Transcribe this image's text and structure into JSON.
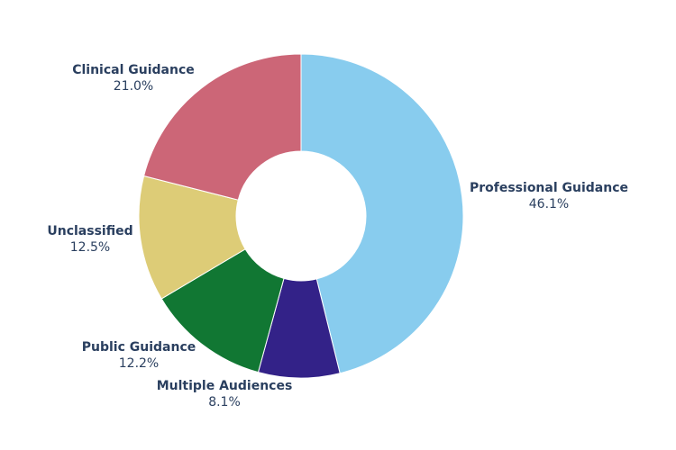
{
  "chart_data": {
    "type": "pie",
    "hole": true,
    "labels": [
      "Professional Guidance",
      "Multiple Audiences",
      "Public Guidance",
      "Unclassified",
      "Clinical Guidance"
    ],
    "values": [
      46.1,
      8.1,
      12.2,
      12.5,
      21.0
    ],
    "percent_labels": [
      "46.1%",
      "8.1%",
      "12.2%",
      "12.5%",
      "21.0%"
    ],
    "colors": [
      "#88ccee",
      "#332288",
      "#117733",
      "#ddcc77",
      "#cc6677"
    ],
    "direction": "clockwise",
    "start_angle": "top",
    "legend": "none"
  }
}
